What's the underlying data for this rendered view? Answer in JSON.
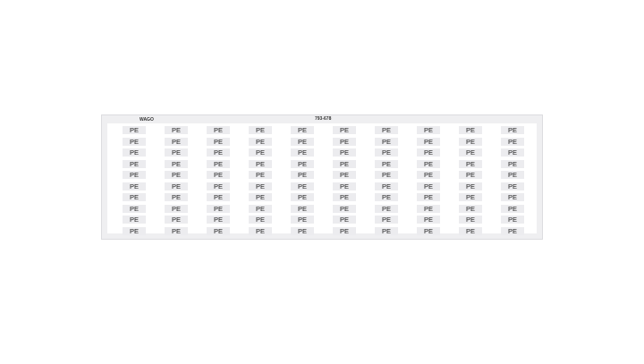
{
  "card": {
    "brand": "WAGO",
    "part_number": "793-678",
    "columns": 10,
    "rows": 10,
    "marker_label": "PE"
  }
}
